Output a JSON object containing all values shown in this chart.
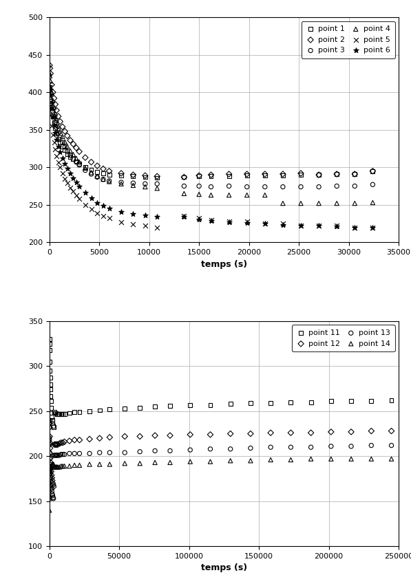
{
  "plot1": {
    "xlabel": "temps (s)",
    "xlim": [
      0,
      35000
    ],
    "ylim": [
      200,
      500
    ],
    "xticks": [
      0,
      5000,
      10000,
      15000,
      20000,
      25000,
      30000,
      35000
    ],
    "yticks": [
      200,
      250,
      300,
      350,
      400,
      450,
      500
    ],
    "series": {
      "point1": {
        "marker": "s",
        "t": [
          30,
          60,
          120,
          240,
          360,
          480,
          600,
          720,
          900,
          1080,
          1320,
          1560,
          1800,
          2100,
          2400,
          2700,
          3000,
          3600,
          4200,
          4800,
          5400,
          6000,
          7200,
          8400,
          9600,
          10800,
          13500,
          15000,
          16200,
          18000,
          19800,
          21600,
          23400,
          25200,
          27000,
          28800,
          30600,
          32400
        ],
        "v": [
          380,
          385,
          388,
          375,
          368,
          360,
          352,
          345,
          338,
          333,
          328,
          323,
          318,
          314,
          311,
          308,
          305,
          300,
          297,
          294,
          292,
          290,
          289,
          288,
          287,
          286,
          287,
          288,
          288,
          288,
          289,
          289,
          289,
          290,
          290,
          291,
          291,
          295
        ]
      },
      "point2": {
        "marker": "D",
        "t": [
          30,
          60,
          120,
          240,
          360,
          480,
          600,
          720,
          900,
          1080,
          1320,
          1560,
          1800,
          2100,
          2400,
          2700,
          3000,
          3600,
          4200,
          4800,
          5400,
          6000,
          7200,
          8400,
          9600,
          10800,
          13500,
          15000,
          16200,
          18000,
          19800,
          21600,
          23400,
          25200,
          27000,
          28800,
          30600,
          32400
        ],
        "v": [
          436,
          432,
          425,
          410,
          400,
          392,
          384,
          376,
          368,
          361,
          354,
          348,
          342,
          336,
          331,
          326,
          321,
          313,
          307,
          302,
          298,
          295,
          292,
          290,
          289,
          288,
          287,
          289,
          290,
          291,
          291,
          291,
          291,
          292,
          290,
          291,
          291,
          295
        ]
      },
      "point3": {
        "marker": "o",
        "t": [
          30,
          60,
          120,
          240,
          360,
          480,
          600,
          720,
          900,
          1080,
          1320,
          1560,
          1800,
          2100,
          2400,
          2700,
          3000,
          3600,
          4200,
          4800,
          5400,
          6000,
          7200,
          8400,
          9600,
          10800,
          13500,
          15000,
          16200,
          18000,
          19800,
          21600,
          23400,
          25200,
          27000,
          28800,
          30600,
          32400
        ],
        "v": [
          405,
          403,
          398,
          385,
          375,
          367,
          360,
          353,
          346,
          340,
          333,
          327,
          321,
          316,
          311,
          307,
          303,
          296,
          291,
          287,
          284,
          282,
          280,
          279,
          278,
          278,
          275,
          275,
          274,
          275,
          274,
          274,
          274,
          274,
          274,
          275,
          275,
          277
        ]
      },
      "point4": {
        "marker": "^",
        "t": [
          30,
          60,
          120,
          240,
          360,
          480,
          600,
          720,
          900,
          1080,
          1320,
          1560,
          1800,
          2100,
          2400,
          2700,
          3000,
          3600,
          4200,
          4800,
          5400,
          6000,
          7200,
          8400,
          9600,
          10800,
          13500,
          15000,
          16200,
          18000,
          19800,
          21600,
          23400,
          25200,
          27000,
          28800,
          30600,
          32400
        ],
        "v": [
          425,
          422,
          415,
          400,
          389,
          380,
          371,
          363,
          355,
          348,
          341,
          334,
          328,
          322,
          317,
          312,
          307,
          299,
          293,
          288,
          284,
          281,
          278,
          276,
          274,
          272,
          265,
          264,
          263,
          263,
          263,
          263,
          252,
          252,
          252,
          252,
          252,
          253
        ]
      },
      "point5": {
        "marker": "x",
        "t": [
          30,
          60,
          120,
          240,
          360,
          480,
          600,
          720,
          900,
          1080,
          1320,
          1560,
          1800,
          2100,
          2400,
          2700,
          3000,
          3600,
          4200,
          4800,
          5400,
          6000,
          7200,
          8400,
          9600,
          10800,
          13500,
          15000,
          16200,
          18000,
          19800,
          21600,
          23400,
          25200,
          27000,
          28800,
          30600,
          32400
        ],
        "v": [
          382,
          378,
          370,
          355,
          343,
          333,
          324,
          315,
          307,
          300,
          292,
          285,
          279,
          273,
          268,
          263,
          258,
          250,
          244,
          239,
          235,
          232,
          227,
          224,
          222,
          220,
          235,
          232,
          230,
          228,
          228,
          225,
          225,
          222,
          222,
          222,
          220,
          220
        ]
      },
      "point6": {
        "marker": "*",
        "t": [
          30,
          60,
          120,
          240,
          360,
          480,
          600,
          720,
          900,
          1080,
          1320,
          1560,
          1800,
          2100,
          2400,
          2700,
          3000,
          3600,
          4200,
          4800,
          5400,
          6000,
          7200,
          8400,
          9600,
          10800,
          13500,
          15000,
          16200,
          18000,
          19800,
          21600,
          23400,
          25200,
          27000,
          28800,
          30600,
          32400
        ],
        "v": [
          408,
          404,
          396,
          379,
          367,
          356,
          346,
          337,
          328,
          320,
          312,
          305,
          298,
          292,
          286,
          280,
          275,
          266,
          259,
          253,
          249,
          245,
          241,
          238,
          236,
          234,
          234,
          231,
          229,
          227,
          226,
          225,
          223,
          222,
          222,
          221,
          220,
          220
        ]
      }
    }
  },
  "plot2": {
    "xlabel": "temps (s)",
    "xlim": [
      0,
      250000
    ],
    "ylim": [
      100,
      350
    ],
    "xticks": [
      0,
      50000,
      100000,
      150000,
      200000,
      250000
    ],
    "yticks": [
      100,
      150,
      200,
      250,
      300,
      350
    ],
    "series": {
      "point11": {
        "marker": "s",
        "t": [
          30,
          60,
          120,
          240,
          360,
          480,
          600,
          720,
          900,
          1080,
          1320,
          1560,
          1800,
          2100,
          2400,
          2700,
          3000,
          3600,
          4200,
          4800,
          5400,
          6000,
          7200,
          8400,
          9600,
          10800,
          14400,
          18000,
          21600,
          28800,
          36000,
          43200,
          54000,
          64800,
          75600,
          86400,
          100800,
          115200,
          129600,
          144000,
          158400,
          172800,
          187200,
          201600,
          216000,
          230400,
          244800
        ],
        "v": [
          330,
          325,
          318,
          305,
          295,
          287,
          280,
          274,
          267,
          261,
          254,
          248,
          244,
          240,
          237,
          234,
          232,
          249,
          248,
          248,
          247,
          247,
          247,
          247,
          247,
          247,
          248,
          249,
          249,
          250,
          251,
          252,
          253,
          254,
          255,
          256,
          257,
          257,
          258,
          259,
          259,
          260,
          260,
          261,
          261,
          261,
          262
        ]
      },
      "point12": {
        "marker": "D",
        "t": [
          30,
          60,
          120,
          240,
          360,
          480,
          600,
          720,
          900,
          1080,
          1320,
          1560,
          1800,
          2100,
          2400,
          2700,
          3000,
          3600,
          4200,
          4800,
          5400,
          6000,
          7200,
          8400,
          9600,
          10800,
          14400,
          18000,
          21600,
          28800,
          36000,
          43200,
          54000,
          64800,
          75600,
          86400,
          100800,
          115200,
          129600,
          144000,
          158400,
          172800,
          187200,
          201600,
          216000,
          230400,
          244800
        ],
        "v": [
          240,
          237,
          232,
          222,
          215,
          209,
          203,
          198,
          193,
          188,
          183,
          179,
          176,
          173,
          170,
          168,
          166,
          213,
          213,
          213,
          213,
          213,
          214,
          215,
          215,
          216,
          217,
          218,
          218,
          219,
          220,
          221,
          222,
          222,
          223,
          223,
          224,
          224,
          225,
          225,
          226,
          226,
          226,
          227,
          227,
          228,
          228
        ]
      },
      "point13": {
        "marker": "o",
        "t": [
          30,
          60,
          120,
          240,
          360,
          480,
          600,
          720,
          900,
          1080,
          1320,
          1560,
          1800,
          2100,
          2400,
          2700,
          3000,
          3600,
          4200,
          4800,
          5400,
          6000,
          7200,
          8400,
          9600,
          10800,
          14400,
          18000,
          21600,
          28800,
          36000,
          43200,
          54000,
          64800,
          75600,
          86400,
          100800,
          115200,
          129600,
          144000,
          158400,
          172800,
          187200,
          201600,
          216000,
          230400,
          244800
        ],
        "v": [
          220,
          218,
          213,
          204,
          197,
          191,
          186,
          181,
          176,
          172,
          167,
          164,
          161,
          158,
          156,
          154,
          153,
          201,
          201,
          201,
          201,
          201,
          201,
          202,
          202,
          202,
          203,
          203,
          203,
          203,
          204,
          204,
          204,
          205,
          206,
          206,
          207,
          208,
          208,
          209,
          210,
          210,
          210,
          211,
          211,
          212,
          212
        ]
      },
      "point14": {
        "marker": "^",
        "t": [
          30,
          60,
          120,
          240,
          360,
          480,
          600,
          720,
          900,
          1080,
          1320,
          1560,
          1800,
          2100,
          2400,
          2700,
          3000,
          3600,
          4200,
          4800,
          5400,
          6000,
          7200,
          8400,
          9600,
          10800,
          14400,
          18000,
          21600,
          28800,
          36000,
          43200,
          54000,
          64800,
          75600,
          86400,
          100800,
          115200,
          129600,
          144000,
          158400,
          172800,
          187200,
          201600,
          216000,
          230400,
          244800
        ],
        "v": [
          140,
          153,
          163,
          172,
          177,
          181,
          183,
          185,
          187,
          188,
          189,
          189,
          190,
          191,
          191,
          191,
          191,
          188,
          188,
          188,
          188,
          188,
          188,
          189,
          189,
          189,
          189,
          190,
          190,
          191,
          191,
          191,
          192,
          192,
          193,
          193,
          194,
          194,
          195,
          195,
          196,
          196,
          197,
          197,
          197,
          197,
          197
        ]
      }
    }
  }
}
